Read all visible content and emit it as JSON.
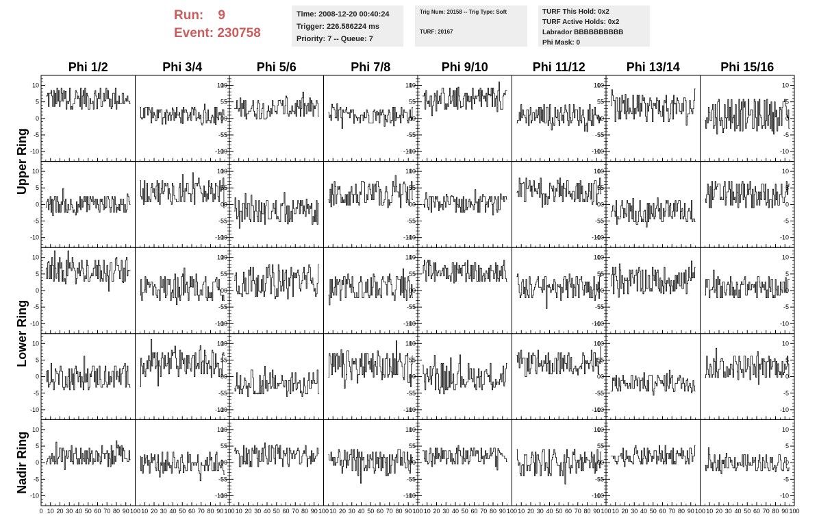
{
  "header": {
    "run_label": "Run:",
    "run_value": "9",
    "event_label": "Event:",
    "event_value": "230758"
  },
  "info_time": {
    "line1": "Time: 2008-12-20 00:40:24",
    "line2": "Trigger: 226.586224 ms",
    "line3": "Priority: 7 -- Queue: 7"
  },
  "info_trig": {
    "line1": "Trig Num: 20158 -- Trig Type: Soft",
    "line2": "TURF: 20167"
  },
  "info_turf": {
    "line1": "TURF This Hold: 0x2",
    "line2": "TURF Active Holds: 0x2",
    "line3": "Labrador BBBBBBBBBB",
    "line4": "Phi Mask: 0"
  },
  "chart_data": {
    "type": "line",
    "columns": [
      "Phi 1/2",
      "Phi 3/4",
      "Phi 5/6",
      "Phi 7/8",
      "Phi 9/10",
      "Phi 11/12",
      "Phi 13/14",
      "Phi 15/16"
    ],
    "row_labels": [
      {
        "label": "Upper Ring",
        "rows": [
          0,
          1
        ]
      },
      {
        "label": "Lower Ring",
        "rows": [
          2,
          3
        ]
      },
      {
        "label": "Nadir Ring",
        "rows": [
          4
        ]
      }
    ],
    "xlim": [
      0,
      100
    ],
    "ylim": [
      -13,
      13
    ],
    "y_ticks": [
      -10,
      -5,
      0,
      5,
      10
    ],
    "x_ticks": [
      0,
      10,
      20,
      30,
      40,
      50,
      60,
      70,
      80,
      90,
      100
    ],
    "x_samples": 100,
    "grid": false,
    "trace_color": "#000000",
    "panel_offsets": [
      [
        6,
        1,
        3,
        1,
        6,
        1,
        3,
        1
      ],
      [
        0,
        4,
        -2,
        3,
        0,
        4,
        -2,
        3
      ],
      [
        6,
        1,
        3,
        1,
        6,
        1,
        3,
        1
      ],
      [
        0,
        4,
        -2,
        3,
        0,
        4,
        -2,
        3
      ],
      [
        2,
        0,
        2,
        0,
        2,
        0,
        2,
        0
      ]
    ],
    "panel_amplitudes": [
      [
        2.2,
        1.6,
        2.0,
        1.6,
        2.2,
        2.0,
        2.6,
        3.0
      ],
      [
        1.8,
        2.4,
        2.4,
        2.6,
        1.8,
        2.4,
        2.4,
        2.6
      ],
      [
        2.4,
        2.6,
        3.2,
        2.4,
        2.2,
        2.4,
        2.6,
        2.0
      ],
      [
        2.4,
        2.6,
        2.4,
        3.0,
        2.6,
        2.4,
        1.8,
        2.4
      ],
      [
        2.0,
        2.0,
        2.2,
        2.4,
        1.8,
        2.6,
        1.8,
        1.6
      ]
    ]
  }
}
